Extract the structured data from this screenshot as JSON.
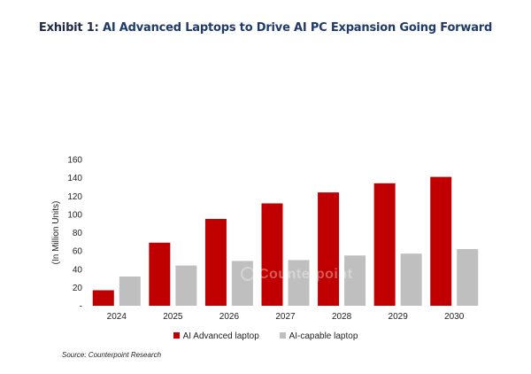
{
  "header": {
    "lead": "Exhibit 1:",
    "title": "AI Advanced Laptops to Drive AI PC Expansion Going Forward"
  },
  "source": "Source: Counterpoint Research",
  "watermark": "Counterpoint",
  "colors": {
    "ai_advanced": "#c00000",
    "ai_capable": "#bfbfbf",
    "axis_text": "#222222"
  },
  "chart_data": {
    "type": "bar",
    "categories": [
      "2024",
      "2025",
      "2026",
      "2027",
      "2028",
      "2029",
      "2030"
    ],
    "series": [
      {
        "name": "AI Advanced laptop",
        "values": [
          17,
          69,
          95,
          112,
          124,
          134,
          141
        ]
      },
      {
        "name": "AI-capable laptop",
        "values": [
          32,
          44,
          49,
          50,
          55,
          57,
          62
        ]
      }
    ],
    "ylabel": "(In Million Units)",
    "ylim": [
      0,
      160
    ],
    "yticks": [
      "-",
      "20",
      "40",
      "60",
      "80",
      "100",
      "120",
      "140",
      "160"
    ],
    "grid": false,
    "legend": "bottom"
  }
}
